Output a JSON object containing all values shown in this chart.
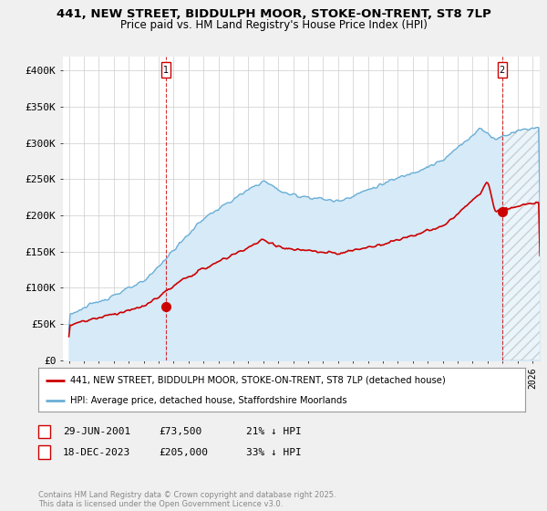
{
  "title": "441, NEW STREET, BIDDULPH MOOR, STOKE-ON-TRENT, ST8 7LP",
  "subtitle": "Price paid vs. HM Land Registry's House Price Index (HPI)",
  "ylim": [
    0,
    420000
  ],
  "yticks": [
    0,
    50000,
    100000,
    150000,
    200000,
    250000,
    300000,
    350000,
    400000
  ],
  "ytick_labels": [
    "£0",
    "£50K",
    "£100K",
    "£150K",
    "£200K",
    "£250K",
    "£300K",
    "£350K",
    "£400K"
  ],
  "xlim_start": 1994.6,
  "xlim_end": 2026.5,
  "hpi_color": "#6aaed6",
  "hpi_fill_color": "#d6eaf8",
  "price_color": "#cc0000",
  "marker1_x": 2001.49,
  "marker1_y": 73500,
  "marker2_x": 2023.97,
  "marker2_y": 205000,
  "legend_line1": "441, NEW STREET, BIDDULPH MOOR, STOKE-ON-TRENT, ST8 7LP (detached house)",
  "legend_line2": "HPI: Average price, detached house, Staffordshire Moorlands",
  "copyright": "Contains HM Land Registry data © Crown copyright and database right 2025.\nThis data is licensed under the Open Government Licence v3.0.",
  "background_color": "#f0f0f0",
  "plot_bg_color": "#ffffff",
  "grid_color": "#cccccc"
}
